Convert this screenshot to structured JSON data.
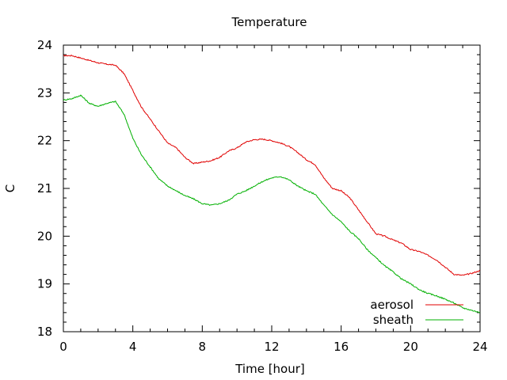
{
  "chart_data": {
    "type": "line",
    "title": "Temperature",
    "xlabel": "Time [hour]",
    "ylabel": "C",
    "xlim": [
      0,
      24
    ],
    "ylim": [
      18,
      24
    ],
    "xticks": [
      0,
      4,
      8,
      12,
      16,
      20,
      24
    ],
    "yticks": [
      18,
      19,
      20,
      21,
      22,
      23,
      24
    ],
    "grid": false,
    "legend_position": "bottom-right",
    "series": [
      {
        "name": "aerosol",
        "color": "#e00000",
        "x": [
          0,
          0.5,
          1,
          1.5,
          2,
          2.5,
          3,
          3.5,
          4,
          4.5,
          5,
          5.5,
          6,
          6.5,
          7,
          7.5,
          8,
          8.5,
          9,
          9.5,
          10,
          10.5,
          11,
          11.5,
          12,
          12.5,
          13,
          13.5,
          14,
          14.5,
          15,
          15.5,
          16,
          16.5,
          17,
          17.5,
          18,
          18.5,
          19,
          19.5,
          20,
          20.5,
          21,
          21.5,
          22,
          22.5,
          23,
          23.5,
          24
        ],
        "values": [
          23.78,
          23.78,
          23.73,
          23.68,
          23.63,
          23.6,
          23.58,
          23.4,
          23.05,
          22.7,
          22.45,
          22.2,
          21.95,
          21.85,
          21.65,
          21.52,
          21.55,
          21.58,
          21.65,
          21.78,
          21.85,
          21.97,
          22.02,
          22.03,
          22.0,
          21.95,
          21.88,
          21.75,
          21.6,
          21.5,
          21.22,
          21.0,
          20.95,
          20.8,
          20.55,
          20.3,
          20.05,
          20.0,
          19.92,
          19.85,
          19.72,
          19.68,
          19.6,
          19.5,
          19.35,
          19.2,
          19.18,
          19.22,
          19.28
        ]
      },
      {
        "name": "sheath",
        "color": "#00b000",
        "x": [
          0,
          0.5,
          1,
          1.5,
          2,
          2.5,
          3,
          3.5,
          4,
          4.5,
          5,
          5.5,
          6,
          6.5,
          7,
          7.5,
          8,
          8.5,
          9,
          9.5,
          10,
          10.5,
          11,
          11.5,
          12,
          12.5,
          13,
          13.5,
          14,
          14.5,
          15,
          15.5,
          16,
          16.5,
          17,
          17.5,
          18,
          18.5,
          19,
          19.5,
          20,
          20.5,
          21,
          21.5,
          22,
          22.5,
          23,
          23.5,
          24
        ],
        "values": [
          22.85,
          22.88,
          22.95,
          22.78,
          22.72,
          22.78,
          22.82,
          22.55,
          22.05,
          21.7,
          21.45,
          21.2,
          21.05,
          20.95,
          20.85,
          20.78,
          20.68,
          20.65,
          20.68,
          20.75,
          20.88,
          20.95,
          21.05,
          21.15,
          21.22,
          21.25,
          21.18,
          21.05,
          20.95,
          20.88,
          20.65,
          20.45,
          20.3,
          20.1,
          19.95,
          19.72,
          19.55,
          19.38,
          19.25,
          19.1,
          19.0,
          18.88,
          18.8,
          18.75,
          18.68,
          18.6,
          18.5,
          18.45,
          18.4
        ]
      }
    ]
  }
}
